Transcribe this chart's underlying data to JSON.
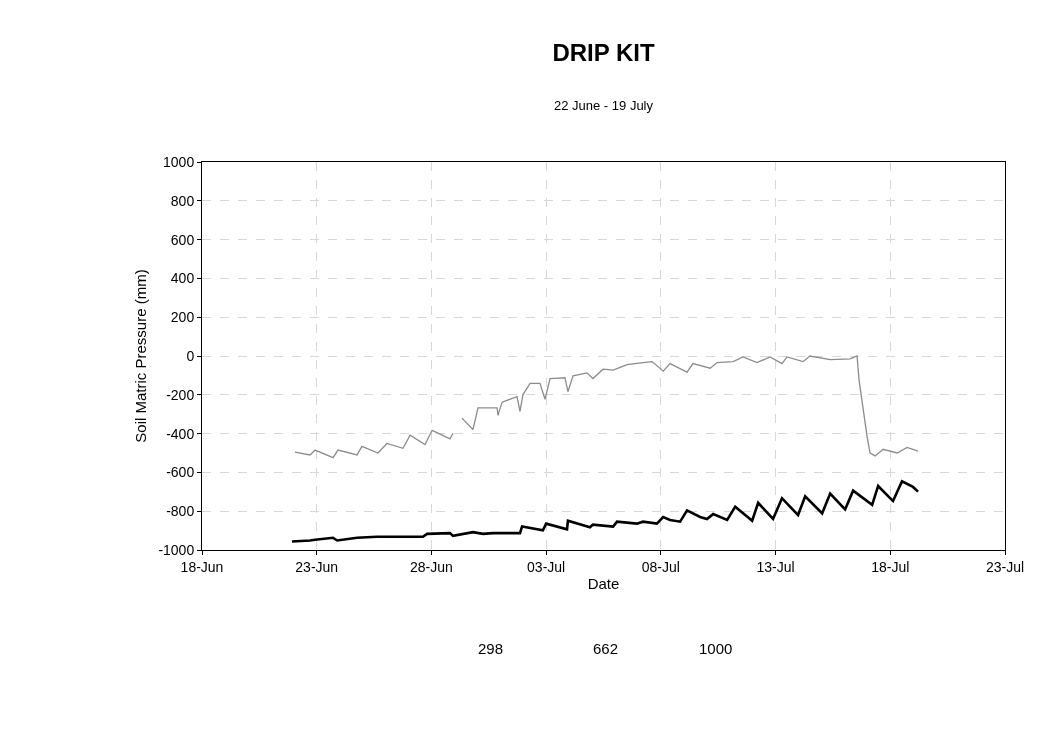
{
  "chart_data": {
    "type": "line",
    "title": "DRIP KIT",
    "subtitle": "22 June - 19 July",
    "xlabel": "Date",
    "ylabel": "Soil Matric Pressure (mm)",
    "annotations": [
      "298",
      "662",
      "1000"
    ],
    "xlim": [
      "--06-18",
      "--07-23"
    ],
    "xticks": [
      {
        "value": "--06-18",
        "label": "18-Jun"
      },
      {
        "value": "--06-23",
        "label": "23-Jun"
      },
      {
        "value": "--06-28",
        "label": "28-Jun"
      },
      {
        "value": "--07-03",
        "label": "03-Jul"
      },
      {
        "value": "--07-08",
        "label": "08-Jul"
      },
      {
        "value": "--07-13",
        "label": "13-Jul"
      },
      {
        "value": "--07-18",
        "label": "18-Jul"
      },
      {
        "value": "--07-23",
        "label": "23-Jul"
      }
    ],
    "ylim": [
      -1000,
      1000
    ],
    "yticks": [
      -1000,
      -800,
      -600,
      -400,
      -200,
      0,
      200,
      400,
      600,
      800,
      1000
    ],
    "grid": true,
    "marker": "none",
    "line_style": "solid",
    "series": [
      {
        "color": "#8c8c8c",
        "x": [
          "--06-22T01:12",
          "--06-22T17:02",
          "--06-22T22:19",
          "--06-23T17:02",
          "--06-23T22:19",
          "--06-24T18:14",
          "--06-24T23:17",
          "--06-25T16:05",
          "--06-26T01:26",
          "--06-26T18:14",
          "--06-27T01:41",
          "--06-27T17:17",
          "--06-28T00:43",
          "--06-28T19:26",
          "--06-28T22:34",
          "--06-29T02:24",
          "--06-29T07:55",
          "--06-29T19:26",
          "--06-30T00:43",
          "--06-30T20:38",
          "--06-30T21:36",
          "--07-01T01:55",
          "--07-01T17:31",
          "--07-01T20:38",
          "--07-01T23:46",
          "--07-02T07:12",
          "--07-02T17:31",
          "--07-02T22:48",
          "--07-03T04:05",
          "--07-03T19:41",
          "--07-03T22:48",
          "--07-04T04:05",
          "--07-04T18:43",
          "--07-05T00:58",
          "--07-05T11:31",
          "--07-05T22:05",
          "--07-06T12:43",
          "--07-07T05:17",
          "--07-07T14:53",
          "--07-08T02:24",
          "--07-08T09:36",
          "--07-09T03:22",
          "--07-09T09:36",
          "--07-10T03:36",
          "--07-10T10:48",
          "--07-11T03:36",
          "--07-11T13:55",
          "--07-12T04:34",
          "--07-12T18:14",
          "--07-13T06:43",
          "--07-13T12:00",
          "--07-14T04:48",
          "--07-14T12:00",
          "--07-15T09:07",
          "--07-16T06:00",
          "--07-16T13:12",
          "--07-16T15:22",
          "--07-16T23:46",
          "--07-17T02:53",
          "--07-17T08:10",
          "--07-17T16:34",
          "--07-18T07:12",
          "--07-18T17:31",
          "--07-19T05:02"
        ],
        "values": [
          -495,
          -510,
          -485,
          -524,
          -485,
          -510,
          -466,
          -500,
          -451,
          -476,
          -408,
          -456,
          -383,
          -427,
          -398,
          null,
          -320,
          -379,
          -267,
          -267,
          -306,
          -238,
          -209,
          -286,
          -199,
          -141,
          -141,
          -223,
          -116,
          -112,
          -184,
          -102,
          -87,
          -116,
          -68,
          -73,
          -44,
          -34,
          -29,
          -78,
          -39,
          -83,
          -39,
          -63,
          -34,
          -29,
          -5,
          -34,
          -5,
          -39,
          -5,
          -29,
          0,
          -19,
          -15,
          0,
          -126,
          -417,
          -500,
          -515,
          -481,
          -500,
          -471,
          -490
        ]
      },
      {
        "color": "#000000",
        "x": [
          "--06-21T22:05",
          "--06-22T17:02",
          "--06-22T22:19",
          "--06-23T17:02",
          "--06-23T21:22",
          "--06-24T18:14",
          "--06-25T15:07",
          "--06-27T15:07",
          "--06-27T19:26",
          "--06-28T19:26",
          "--06-28T22:34",
          "--06-29T19:26",
          "--06-30T06:00",
          "--06-30T16:34",
          "--07-01T20:38",
          "--07-01T22:48",
          "--07-02T20:38",
          "--07-03T00:00",
          "--07-03T21:50",
          "--07-03T22:48",
          "--07-04T21:50",
          "--07-05T00:58",
          "--07-05T22:05",
          "--07-06T02:10",
          "--07-06T23:02",
          "--07-07T05:17",
          "--07-07T19:55",
          "--07-08T02:24",
          "--07-08T09:36",
          "--07-08T20:10",
          "--07-09T03:22",
          "--07-09T17:02",
          "--07-10T00:14",
          "--07-10T06:43",
          "--07-10T21:22",
          "--07-11T05:46",
          "--07-11T23:31",
          "--07-12T05:46",
          "--07-12T21:22",
          "--07-13T06:43",
          "--07-13T23:31",
          "--07-14T06:58",
          "--07-15T00:43",
          "--07-15T09:07",
          "--07-16T00:43",
          "--07-16T09:07",
          "--07-17T05:02",
          "--07-17T11:17",
          "--07-18T02:53",
          "--07-18T12:14",
          "--07-18T23:46",
          "--07-19T05:02"
        ],
        "values": [
          -956,
          -951,
          -947,
          -937,
          -951,
          -937,
          -932,
          -932,
          -917,
          -913,
          -927,
          -908,
          -917,
          -913,
          -913,
          -879,
          -898,
          -864,
          -893,
          -849,
          -883,
          -869,
          -879,
          -854,
          -864,
          -854,
          -864,
          -830,
          -845,
          -854,
          -796,
          -830,
          -840,
          -815,
          -845,
          -777,
          -849,
          -757,
          -840,
          -733,
          -820,
          -723,
          -811,
          -709,
          -791,
          -694,
          -767,
          -670,
          -748,
          -646,
          -675,
          -699
        ]
      }
    ]
  }
}
